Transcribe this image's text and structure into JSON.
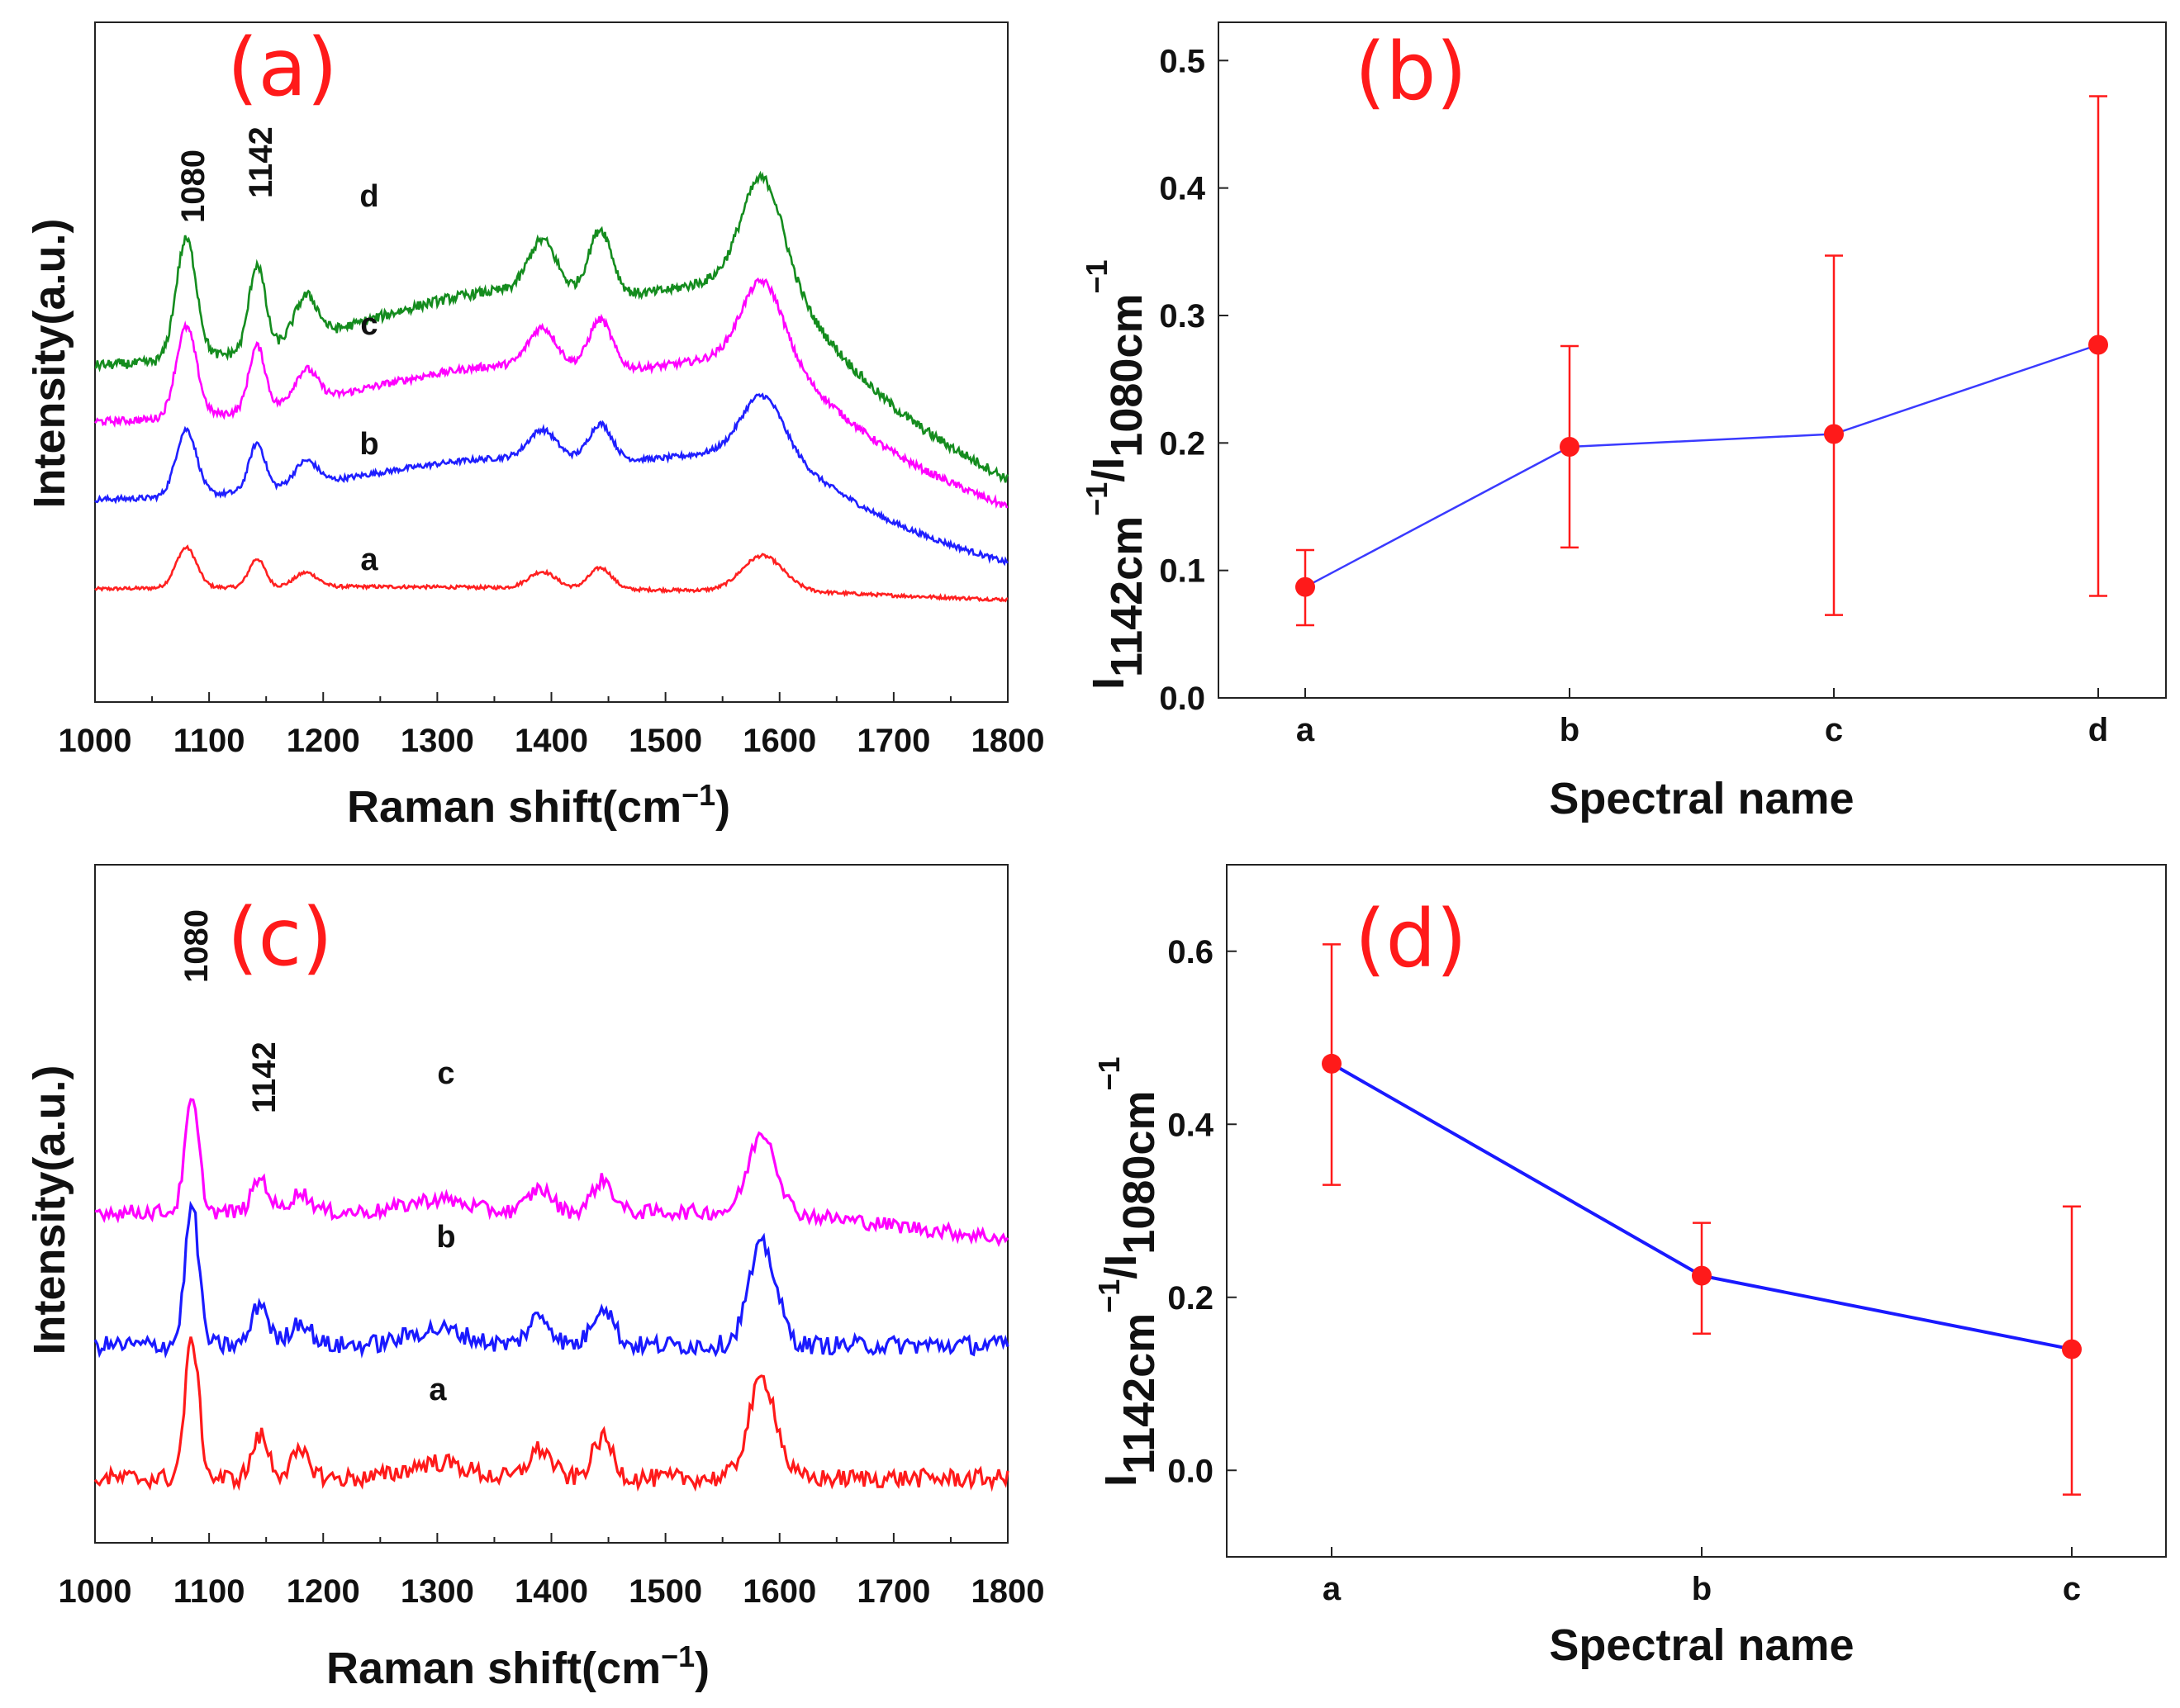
{
  "chart_data": [
    {
      "panel": "(a)",
      "type": "line",
      "xlabel": "Raman shift(cm",
      "xlabel_sup": "−1",
      "xlabel_close": ")",
      "ylabel": "Intensity(a.u.)",
      "xlim": [
        1000,
        1800
      ],
      "xticks": [
        1000,
        1100,
        1200,
        1300,
        1400,
        1500,
        1600,
        1700,
        1800
      ],
      "peak_labels": [
        "1080",
        "1142"
      ],
      "series": [
        {
          "name": "a",
          "color": "#ff2020",
          "offset": 0.0,
          "scale": 0.6
        },
        {
          "name": "b",
          "color": "#1f1fff",
          "offset": 0.95,
          "scale": 1.0
        },
        {
          "name": "c",
          "color": "#ff00ff",
          "offset": 1.85,
          "scale": 1.35
        },
        {
          "name": "d",
          "color": "#148c1e",
          "offset": 2.45,
          "scale": 1.8
        }
      ]
    },
    {
      "panel": "(b)",
      "type": "scatter",
      "xlabel": "Spectral name",
      "ylabel_main": "I",
      "ylabel_sub1": "1142cm",
      "ylabel_sup1": "−1",
      "ylabel_mid": "/I",
      "ylabel_sub2": "1080cm",
      "ylabel_sup2": "−1",
      "categories": [
        "a",
        "b",
        "c",
        "d"
      ],
      "values": [
        0.087,
        0.197,
        0.207,
        0.277
      ],
      "err_low": [
        0.057,
        0.118,
        0.065,
        0.08
      ],
      "err_high": [
        0.116,
        0.276,
        0.347,
        0.472
      ],
      "ylim": [
        0.0,
        0.53
      ],
      "yticks": [
        "0.0",
        "0.1",
        "0.2",
        "0.3",
        "0.4",
        "0.5"
      ],
      "line_color": "#3a3aff",
      "marker_color": "#ff1a1a"
    },
    {
      "panel": "(c)",
      "type": "line",
      "xlabel": "Raman shift(cm",
      "xlabel_sup": "−1",
      "xlabel_close": ")",
      "ylabel": "Intensity(a.u.)",
      "xlim": [
        1000,
        1800
      ],
      "xticks": [
        1000,
        1100,
        1200,
        1300,
        1400,
        1500,
        1600,
        1700,
        1800
      ],
      "peak_labels": [
        "1080",
        "1142"
      ],
      "series": [
        {
          "name": "a",
          "color": "#ff1a1a",
          "offset": 0.0,
          "scale": 1.0
        },
        {
          "name": "b",
          "color": "#1a1aff",
          "offset": 1.0,
          "scale": 1.0
        },
        {
          "name": "c",
          "color": "#ff00ff",
          "offset": 2.0,
          "scale": 0.8
        }
      ]
    },
    {
      "panel": "(d)",
      "type": "scatter",
      "xlabel": "Spectral name",
      "ylabel_main": "I",
      "ylabel_sub1": "1142cm",
      "ylabel_sup1": "−1",
      "ylabel_mid": "/I",
      "ylabel_sub2": "1080cm",
      "ylabel_sup2": "−1",
      "categories": [
        "a",
        "b",
        "c"
      ],
      "values": [
        0.47,
        0.225,
        0.14
      ],
      "err_low": [
        0.33,
        0.158,
        -0.028
      ],
      "err_high": [
        0.608,
        0.286,
        0.305
      ],
      "ylim": [
        -0.1,
        0.7
      ],
      "yticks": [
        "0.0",
        "0.2",
        "0.4",
        "0.6"
      ],
      "line_color": "#1a1aff",
      "marker_color": "#ff1a1a"
    }
  ]
}
